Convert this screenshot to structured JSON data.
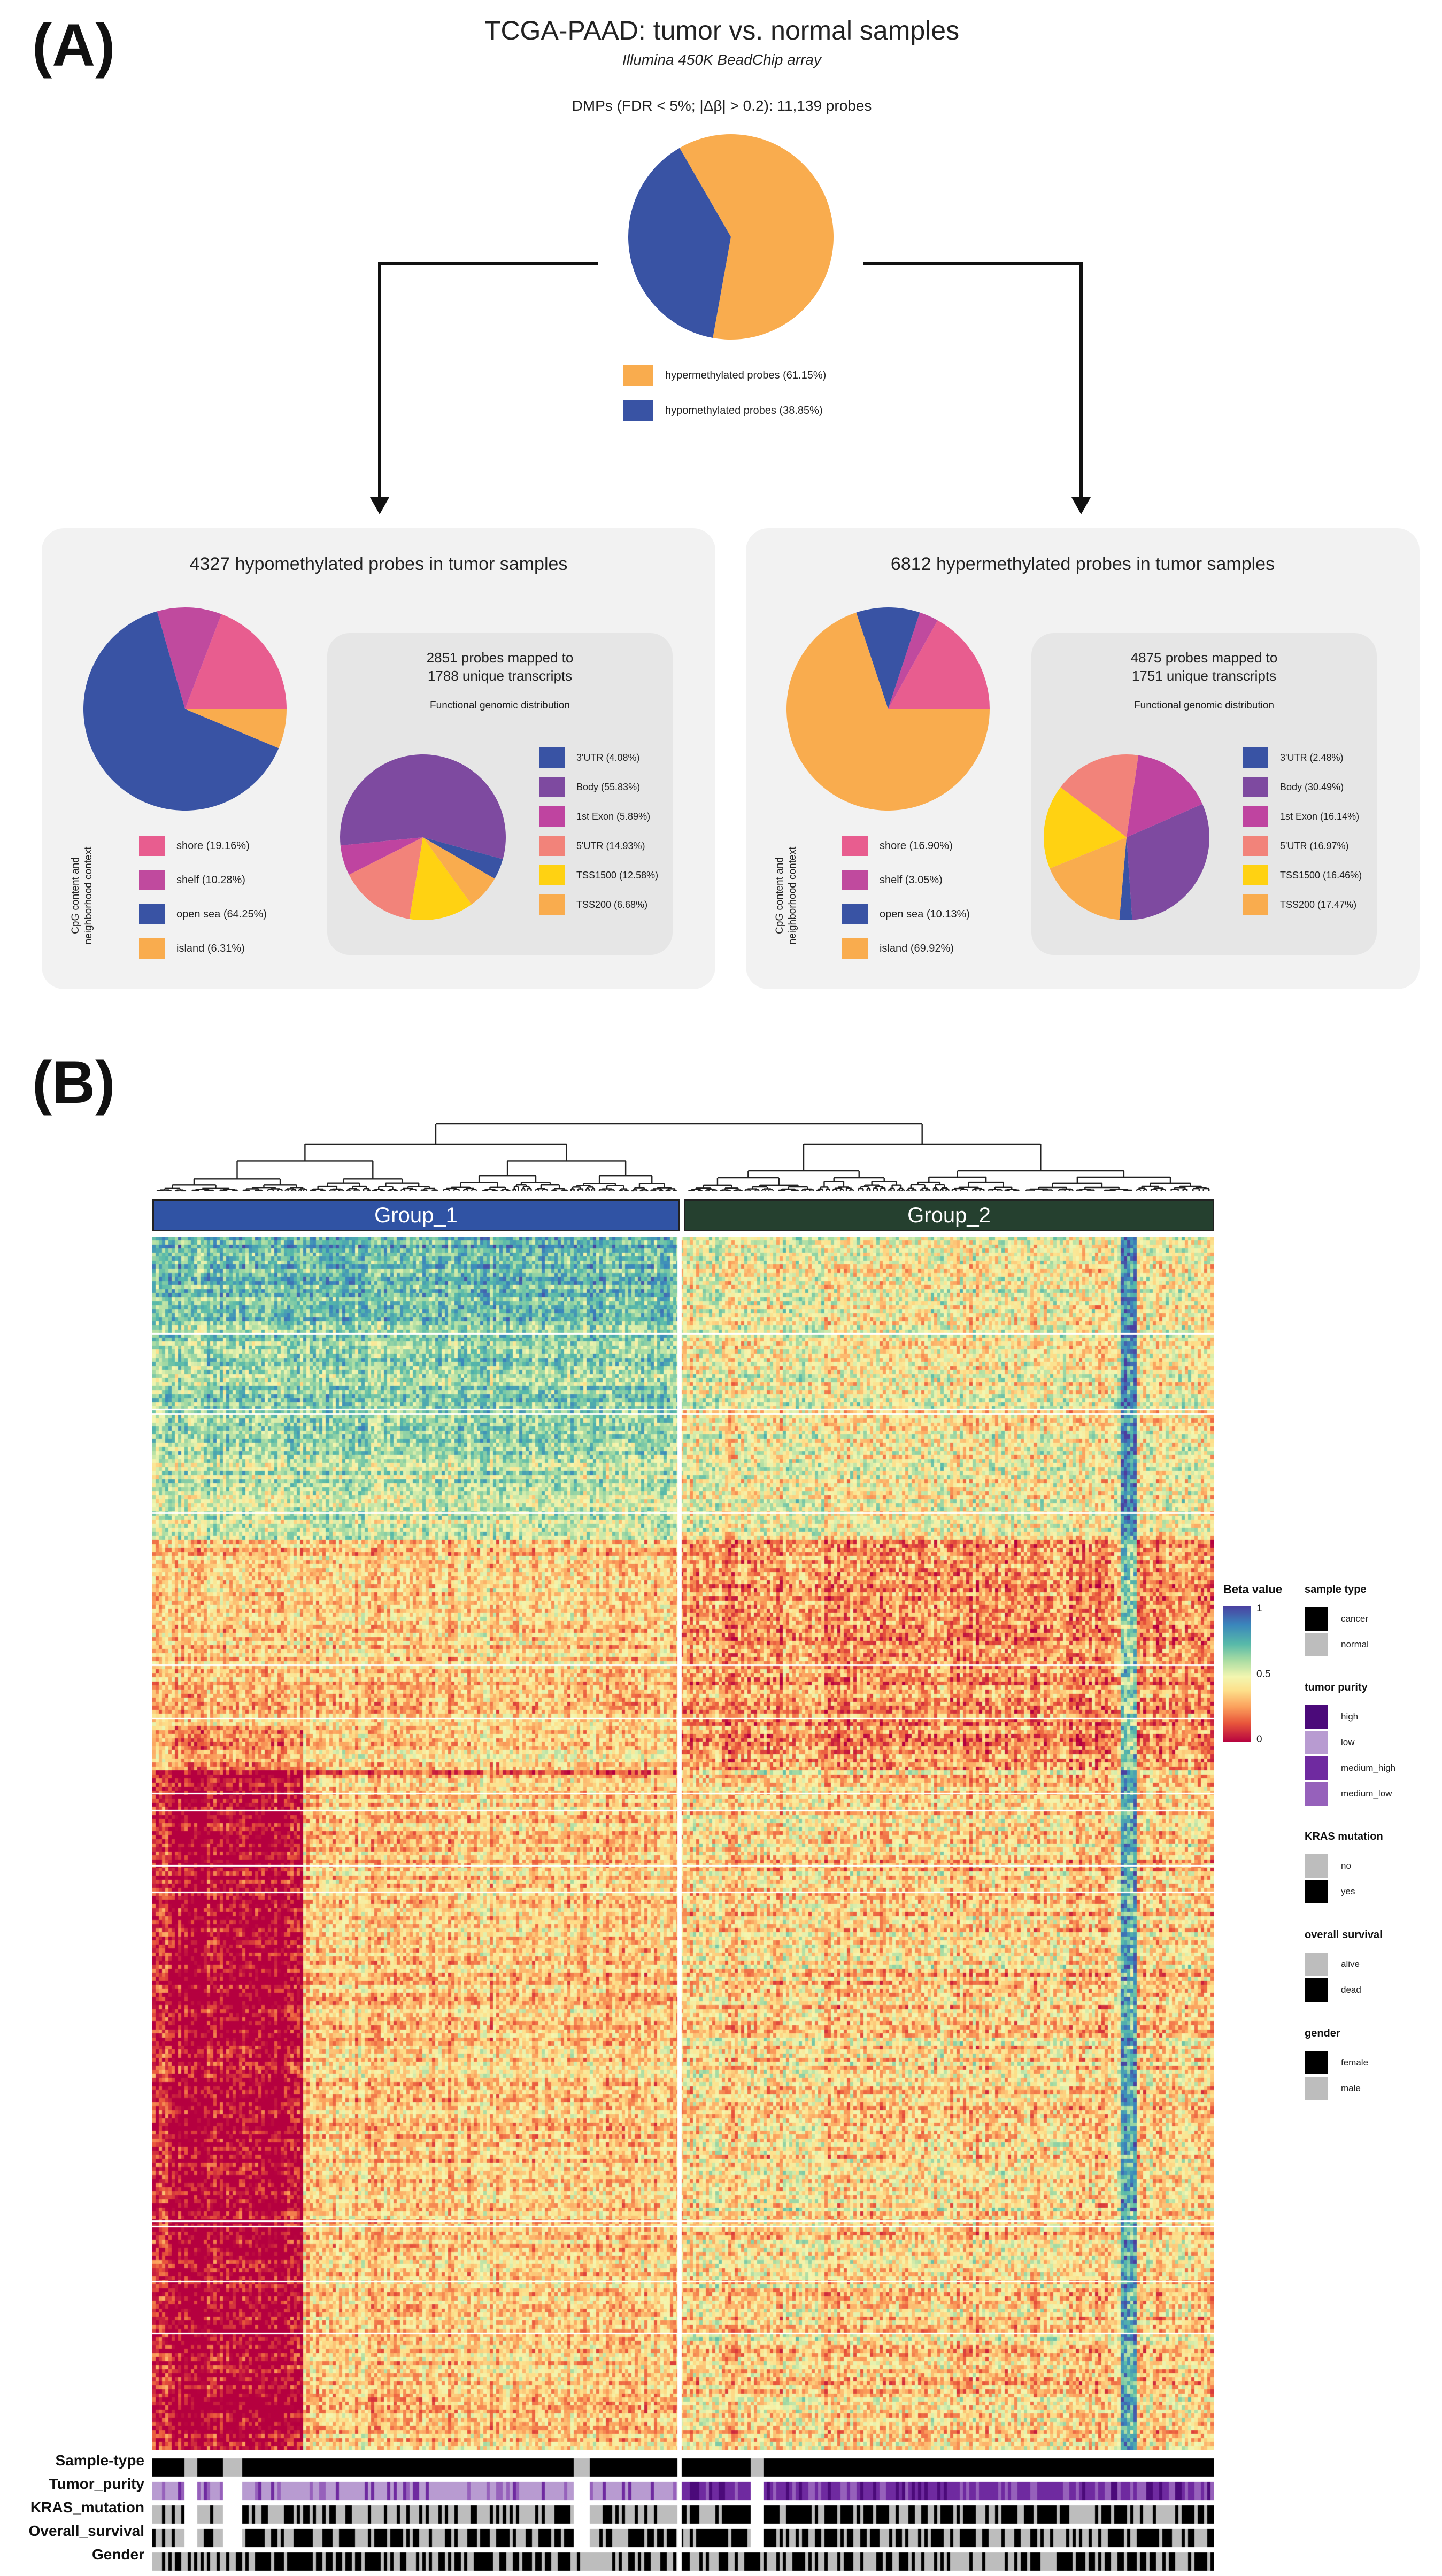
{
  "panel_a_letter": "(A)",
  "panel_b_letter": "(B)",
  "title": "TCGA-PAAD: tumor vs. normal samples",
  "subtitle": "Illumina 450K  BeadChip array",
  "dmps_label": "DMPs (FDR < 5%; |Δβ| > 0.2): 11,139 probes",
  "colors": {
    "hyper": "#f9ac4e",
    "hypo": "#3953a4",
    "shore": "#e85d8f",
    "shelf": "#c04a9e",
    "body": "#7e4aa0",
    "exon1": "#bf44a0",
    "utr5": "#f2837a",
    "tss1500": "#ffd212",
    "group1": "#3053a4",
    "group2": "#25402f"
  },
  "chart_data": [
    {
      "type": "pie",
      "title": "DMPs (FDR < 5%; |Δβ| > 0.2): 11,139 probes",
      "categories": [
        "hypermethylated probes (61.15%)",
        "hypomethylated probes (38.85%)"
      ],
      "values": [
        61.15,
        38.85
      ]
    },
    {
      "type": "pie",
      "title": "4327 hypomethylated probes in tumor samples",
      "axis_label": "CpG content and neighborhood context",
      "categories": [
        "shore (19.16%)",
        "shelf (10.28%)",
        "open sea (64.25%)",
        "island (6.31%)"
      ],
      "values": [
        19.16,
        10.28,
        64.25,
        6.31
      ]
    },
    {
      "type": "pie",
      "title": "2851 probes mapped to 1788 unique transcripts",
      "subtitle": "Functional genomic distribution",
      "categories": [
        "3'UTR (4.08%)",
        "Body (55.83%)",
        "1st Exon (5.89%)",
        "5'UTR (14.93%)",
        "TSS1500 (12.58%)",
        "TSS200 (6.68%)"
      ],
      "values": [
        4.08,
        55.83,
        5.89,
        14.93,
        12.58,
        6.68
      ]
    },
    {
      "type": "pie",
      "title": "6812 hypermethylated probes in tumor samples",
      "axis_label": "CpG content and neighborhood context",
      "categories": [
        "shore (16.90%)",
        "shelf (3.05%)",
        "open sea (10.13%)",
        "island (69.92%)"
      ],
      "values": [
        16.9,
        3.05,
        10.13,
        69.92
      ]
    },
    {
      "type": "pie",
      "title": "4875 probes mapped to 1751 unique transcripts",
      "subtitle": "Functional genomic distribution",
      "categories": [
        "3'UTR (2.48%)",
        "Body (30.49%)",
        "1st Exon (16.14%)",
        "5'UTR (16.97%)",
        "TSS1500 (16.46%)",
        "TSS200 (17.47%)"
      ],
      "values": [
        2.48,
        30.49,
        16.14,
        16.97,
        16.46,
        17.47
      ]
    },
    {
      "type": "heatmap",
      "groups": [
        "Group_1",
        "Group_2"
      ],
      "colorbar_title": "Beta value",
      "colorbar_ticks": [
        "1",
        "0.5",
        "0"
      ],
      "colorbar_range": [
        0,
        1
      ],
      "annotation_rows": [
        "Sample-type",
        "Tumor_purity",
        "KRAS_mutation",
        "Overall_survival",
        "Gender"
      ]
    }
  ],
  "legend_main": [
    "hypermethylated probes (61.15%)",
    "hypomethylated probes (38.85%)"
  ],
  "boxes": {
    "hypo": {
      "title": "4327 hypomethylated probes in tumor samples",
      "context_label": "CpG content and neighborhood context",
      "cpg_legend": [
        "shore (19.16%)",
        "shelf (10.28%)",
        "open sea (64.25%)",
        "island (6.31%)"
      ],
      "inner_title_1": "2851 probes mapped to",
      "inner_title_2": "1788 unique transcripts",
      "inner_subtitle": "Functional genomic distribution",
      "func_legend": [
        "3'UTR (4.08%)",
        "Body (55.83%)",
        "1st Exon (5.89%)",
        "5'UTR (14.93%)",
        "TSS1500 (12.58%)",
        "TSS200 (6.68%)"
      ]
    },
    "hyper": {
      "title": "6812 hypermethylated probes in tumor samples",
      "context_label": "CpG content and neighborhood context",
      "cpg_legend": [
        "shore (16.90%)",
        "shelf (3.05%)",
        "open sea (10.13%)",
        "island (69.92%)"
      ],
      "inner_title_1": "4875 probes mapped to",
      "inner_title_2": "1751 unique transcripts",
      "inner_subtitle": "Functional genomic distribution",
      "func_legend": [
        "3'UTR (2.48%)",
        "Body (30.49%)",
        "1st Exon (16.14%)",
        "5'UTR (16.97%)",
        "TSS1500 (16.46%)",
        "TSS200 (17.47%)"
      ]
    }
  },
  "heatmap": {
    "group1_label": "Group_1",
    "group2_label": "Group_2",
    "annotation_labels": [
      "Sample-type",
      "Tumor_purity",
      "KRAS_mutation",
      "Overall_survival",
      "Gender"
    ],
    "colorbar_title": "Beta value",
    "colorbar_ticks": [
      "1",
      "0.5",
      "0"
    ]
  },
  "right_legend": {
    "sample_type": {
      "title": "sample type",
      "items": [
        "cancer",
        "normal"
      ]
    },
    "tumor_purity": {
      "title": "tumor purity",
      "items": [
        "high",
        "low",
        "medium_high",
        "medium_low"
      ]
    },
    "kras": {
      "title": "KRAS mutation",
      "items": [
        "no",
        "yes"
      ]
    },
    "survival": {
      "title": "overall survival",
      "items": [
        "alive",
        "dead"
      ]
    },
    "gender": {
      "title": "gender",
      "items": [
        "female",
        "male"
      ]
    }
  }
}
